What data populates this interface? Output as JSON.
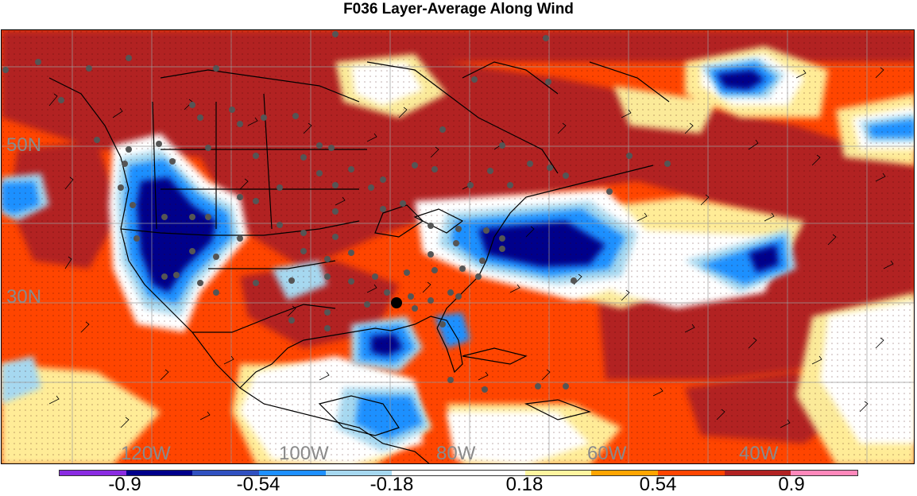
{
  "title": "F036 Layer-Average Along Wind",
  "map": {
    "lat_labels": [
      "50N",
      "30N"
    ],
    "lon_labels": [
      "120W",
      "100W",
      "80W",
      "60W",
      "40W"
    ],
    "marked_location_icon": "large-black-dot-icon",
    "observation_icon": "gray-station-dot-icon",
    "wind_icon": "wind-barb-icon"
  },
  "colorbar": {
    "colors": [
      "#8a2be2",
      "#00008b",
      "#3050c0",
      "#1e90ff",
      "#a6d8f0",
      "#ffffff",
      "#ffffff",
      "#fff5a0",
      "#ffa500",
      "#ff4500",
      "#b22222",
      "#ff88bb"
    ],
    "tick_labels": [
      "-0.9",
      "-0.54",
      "-0.18",
      "0.18",
      "0.54",
      "0.9"
    ]
  }
}
